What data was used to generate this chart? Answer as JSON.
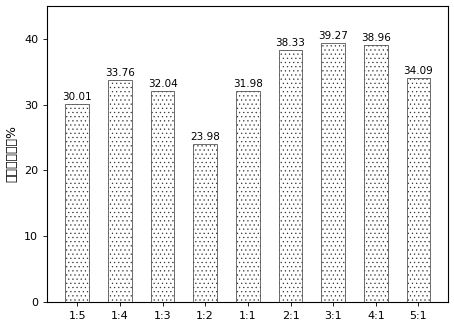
{
  "categories": [
    "1:5",
    "1:4",
    "1:3",
    "1:2",
    "1:1",
    "2:1",
    "3:1",
    "4:1",
    "5:1"
  ],
  "values": [
    30.01,
    33.76,
    32.04,
    23.98,
    31.98,
    38.33,
    39.27,
    38.96,
    34.09
  ],
  "ylabel": "石油烃降解率%",
  "ylim": [
    0,
    45
  ],
  "yticks": [
    0,
    10,
    20,
    30,
    40
  ],
  "bar_facecolor": "#ffffff",
  "bar_edgecolor": "#333333",
  "hatch": "....",
  "hatch_color": "#888888",
  "bar_width": 0.55,
  "label_fontsize": 8,
  "ylabel_fontsize": 9,
  "value_fontsize": 7.5,
  "linewidth": 0.5,
  "figsize": [
    4.54,
    3.27
  ],
  "dpi": 100
}
